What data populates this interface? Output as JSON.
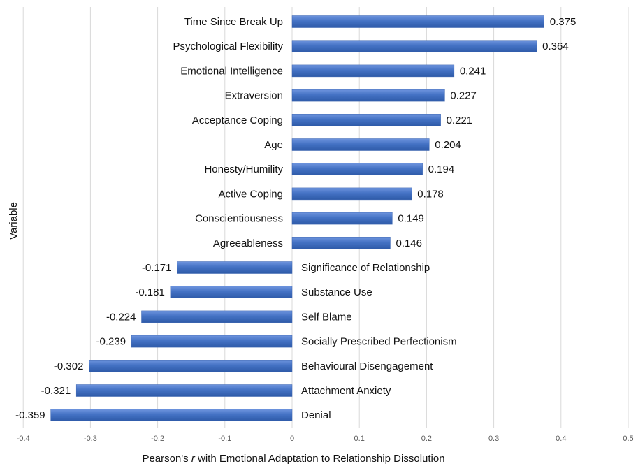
{
  "chart_data": {
    "type": "bar",
    "orientation": "horizontal",
    "title": "",
    "xlabel_prefix": "Pearson's ",
    "xlabel_italic": "r",
    "xlabel_suffix": " with Emotional Adaptation to Relationship Dissolution",
    "ylabel": "Variable",
    "xlim": [
      -0.4,
      0.5
    ],
    "xticks": [
      "-0.4",
      "-0.3",
      "-0.2",
      "-0.1",
      "0",
      "0.1",
      "0.2",
      "0.3",
      "0.4",
      "0.5"
    ],
    "grid": true,
    "bar_color": "#4472c4",
    "categories": [
      "Time Since Break Up",
      "Psychological Flexibility",
      "Emotional Intelligence",
      "Extraversion",
      "Acceptance Coping",
      "Age",
      "Honesty/Humility",
      "Active Coping",
      "Conscientiousness",
      "Agreeableness",
      "Significance of Relationship",
      "Substance Use",
      "Self Blame",
      "Socially Prescribed Perfectionism",
      "Behavioural Disengagement",
      "Attachment Anxiety",
      "Denial"
    ],
    "values": [
      0.375,
      0.364,
      0.241,
      0.227,
      0.221,
      0.204,
      0.194,
      0.178,
      0.149,
      0.146,
      -0.171,
      -0.181,
      -0.224,
      -0.239,
      -0.302,
      -0.321,
      -0.359
    ],
    "value_labels": [
      "0.375",
      "0.364",
      "0.241",
      "0.227",
      "0.221",
      "0.204",
      "0.194",
      "0.178",
      "0.149",
      "0.146",
      "-0.171",
      "-0.181",
      "-0.224",
      "-0.239",
      "-0.302",
      "-0.321",
      "-0.359"
    ]
  }
}
